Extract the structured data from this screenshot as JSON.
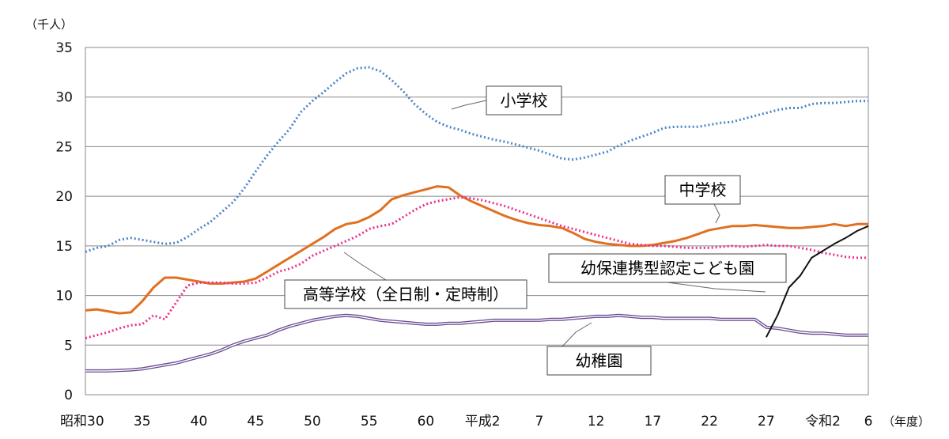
{
  "chart_data": {
    "type": "line",
    "unit_label": "（千人）",
    "x_unit_label": "（年度）",
    "ylim": [
      0,
      35
    ],
    "yticks": [
      0,
      5,
      10,
      15,
      20,
      25,
      30,
      35
    ],
    "xlim": [
      1955,
      2024
    ],
    "xticks": [
      {
        "x": 1955,
        "label": "昭和30"
      },
      {
        "x": 1960,
        "label": "35"
      },
      {
        "x": 1965,
        "label": "40"
      },
      {
        "x": 1970,
        "label": "45"
      },
      {
        "x": 1975,
        "label": "50"
      },
      {
        "x": 1980,
        "label": "55"
      },
      {
        "x": 1985,
        "label": "60"
      },
      {
        "x": 1990,
        "label": "平成2"
      },
      {
        "x": 1995,
        "label": "7"
      },
      {
        "x": 2000,
        "label": "12"
      },
      {
        "x": 2005,
        "label": "17"
      },
      {
        "x": 2010,
        "label": "22"
      },
      {
        "x": 2015,
        "label": "27"
      },
      {
        "x": 2020,
        "label": "令和2"
      },
      {
        "x": 2024,
        "label": "6"
      }
    ],
    "grid": "horizontal",
    "series": [
      {
        "name": "小学校",
        "color": "#4a86c8",
        "style": "dotted",
        "x": [
          1955,
          1956,
          1957,
          1958,
          1959,
          1960,
          1961,
          1962,
          1963,
          1964,
          1965,
          1966,
          1967,
          1968,
          1969,
          1970,
          1971,
          1972,
          1973,
          1974,
          1975,
          1976,
          1977,
          1978,
          1979,
          1980,
          1981,
          1982,
          1983,
          1984,
          1985,
          1986,
          1987,
          1988,
          1989,
          1990,
          1991,
          1992,
          1993,
          1994,
          1995,
          1996,
          1997,
          1998,
          1999,
          2000,
          2001,
          2002,
          2003,
          2004,
          2005,
          2006,
          2007,
          2008,
          2009,
          2010,
          2011,
          2012,
          2013,
          2014,
          2015,
          2016,
          2017,
          2018,
          2019,
          2020,
          2021,
          2022,
          2023,
          2024
        ],
        "values": [
          14.4,
          14.8,
          15.0,
          15.6,
          15.8,
          15.6,
          15.4,
          15.2,
          15.3,
          15.9,
          16.7,
          17.4,
          18.4,
          19.4,
          20.8,
          22.5,
          24.1,
          25.5,
          26.8,
          28.5,
          29.6,
          30.5,
          31.5,
          32.4,
          32.9,
          33.0,
          32.6,
          31.7,
          30.6,
          29.3,
          28.3,
          27.5,
          27.0,
          26.7,
          26.3,
          26.0,
          25.7,
          25.5,
          25.2,
          24.9,
          24.6,
          24.2,
          23.8,
          23.7,
          23.9,
          24.2,
          24.5,
          25.1,
          25.6,
          26.0,
          26.4,
          26.9,
          27.0,
          27.0,
          27.0,
          27.2,
          27.4,
          27.5,
          27.8,
          28.1,
          28.4,
          28.7,
          28.9,
          28.9,
          29.3,
          29.4,
          29.4,
          29.5,
          29.6,
          29.6
        ]
      },
      {
        "name": "中学校",
        "color": "#e07020",
        "style": "solid",
        "x": [
          1955,
          1956,
          1957,
          1958,
          1959,
          1960,
          1961,
          1962,
          1963,
          1964,
          1965,
          1966,
          1967,
          1968,
          1969,
          1970,
          1971,
          1972,
          1973,
          1974,
          1975,
          1976,
          1977,
          1978,
          1979,
          1980,
          1981,
          1982,
          1983,
          1984,
          1985,
          1986,
          1987,
          1988,
          1989,
          1990,
          1991,
          1992,
          1993,
          1994,
          1995,
          1996,
          1997,
          1998,
          1999,
          2000,
          2001,
          2002,
          2003,
          2004,
          2005,
          2006,
          2007,
          2008,
          2009,
          2010,
          2011,
          2012,
          2013,
          2014,
          2015,
          2016,
          2017,
          2018,
          2019,
          2020,
          2021,
          2022,
          2023,
          2024
        ],
        "values": [
          8.5,
          8.6,
          8.4,
          8.2,
          8.3,
          9.4,
          10.8,
          11.8,
          11.8,
          11.6,
          11.4,
          11.2,
          11.2,
          11.3,
          11.4,
          11.7,
          12.4,
          13.1,
          13.8,
          14.5,
          15.2,
          15.9,
          16.7,
          17.2,
          17.4,
          17.9,
          18.6,
          19.7,
          20.1,
          20.4,
          20.7,
          21.0,
          20.9,
          20.1,
          19.5,
          19.0,
          18.5,
          18.0,
          17.6,
          17.3,
          17.1,
          17.0,
          16.8,
          16.3,
          15.7,
          15.4,
          15.2,
          15.1,
          15.0,
          15.0,
          15.1,
          15.3,
          15.5,
          15.8,
          16.2,
          16.6,
          16.8,
          17.0,
          17.0,
          17.1,
          17.0,
          16.9,
          16.8,
          16.8,
          16.9,
          17.0,
          17.2,
          17.0,
          17.2,
          17.2
        ]
      },
      {
        "name": "高等学校（全日制・定時制）",
        "color": "#ee2d8d",
        "style": "dotted",
        "x": [
          1955,
          1956,
          1957,
          1958,
          1959,
          1960,
          1961,
          1962,
          1963,
          1964,
          1965,
          1966,
          1967,
          1968,
          1969,
          1970,
          1971,
          1972,
          1973,
          1974,
          1975,
          1976,
          1977,
          1978,
          1979,
          1980,
          1981,
          1982,
          1983,
          1984,
          1985,
          1986,
          1987,
          1988,
          1989,
          1990,
          1991,
          1992,
          1993,
          1994,
          1995,
          1996,
          1997,
          1998,
          1999,
          2000,
          2001,
          2002,
          2003,
          2004,
          2005,
          2006,
          2007,
          2008,
          2009,
          2010,
          2011,
          2012,
          2013,
          2014,
          2015,
          2016,
          2017,
          2018,
          2019,
          2020,
          2021,
          2022,
          2023,
          2024
        ],
        "values": [
          5.7,
          6.0,
          6.3,
          6.7,
          7.0,
          7.1,
          8.0,
          7.6,
          9.3,
          11.0,
          11.3,
          11.3,
          11.3,
          11.2,
          11.2,
          11.3,
          11.8,
          12.4,
          12.7,
          13.2,
          14.0,
          14.5,
          15.0,
          15.5,
          16.0,
          16.7,
          17.0,
          17.2,
          17.9,
          18.6,
          19.2,
          19.5,
          19.7,
          19.9,
          19.8,
          19.6,
          19.3,
          19.0,
          18.6,
          18.2,
          17.8,
          17.4,
          17.0,
          16.7,
          16.4,
          16.1,
          15.8,
          15.5,
          15.2,
          15.1,
          15.0,
          15.0,
          14.9,
          14.8,
          14.8,
          14.8,
          14.9,
          15.0,
          14.9,
          15.0,
          15.1,
          15.0,
          15.0,
          14.8,
          14.6,
          14.3,
          14.1,
          13.9,
          13.8,
          13.8
        ]
      },
      {
        "name": "幼稚園",
        "color": "#6a4c93",
        "style": "double",
        "x": [
          1955,
          1956,
          1957,
          1958,
          1959,
          1960,
          1961,
          1962,
          1963,
          1964,
          1965,
          1966,
          1967,
          1968,
          1969,
          1970,
          1971,
          1972,
          1973,
          1974,
          1975,
          1976,
          1977,
          1978,
          1979,
          1980,
          1981,
          1982,
          1983,
          1984,
          1985,
          1986,
          1987,
          1988,
          1989,
          1990,
          1991,
          1992,
          1993,
          1994,
          1995,
          1996,
          1997,
          1998,
          1999,
          2000,
          2001,
          2002,
          2003,
          2004,
          2005,
          2006,
          2007,
          2008,
          2009,
          2010,
          2011,
          2012,
          2013,
          2014,
          2015,
          2016,
          2017,
          2018,
          2019,
          2020,
          2021,
          2022,
          2023,
          2024
        ],
        "values": [
          2.4,
          2.4,
          2.4,
          2.45,
          2.5,
          2.6,
          2.8,
          3.0,
          3.2,
          3.5,
          3.8,
          4.1,
          4.5,
          5.0,
          5.4,
          5.7,
          6.0,
          6.5,
          6.9,
          7.2,
          7.5,
          7.7,
          7.9,
          8.0,
          7.9,
          7.7,
          7.5,
          7.4,
          7.3,
          7.2,
          7.1,
          7.1,
          7.2,
          7.2,
          7.3,
          7.4,
          7.5,
          7.5,
          7.5,
          7.5,
          7.5,
          7.6,
          7.6,
          7.7,
          7.8,
          7.9,
          7.9,
          8.0,
          7.9,
          7.8,
          7.8,
          7.7,
          7.7,
          7.7,
          7.7,
          7.7,
          7.6,
          7.6,
          7.6,
          7.6,
          6.8,
          6.7,
          6.5,
          6.3,
          6.2,
          6.2,
          6.1,
          6.0,
          6.0,
          6.0
        ]
      },
      {
        "name": "幼保連携型認定こども園",
        "color": "#111111",
        "style": "solid",
        "x": [
          2015,
          2016,
          2017,
          2018,
          2019,
          2020,
          2021,
          2022,
          2023,
          2024
        ],
        "values": [
          5.8,
          8.0,
          10.8,
          12.0,
          13.8,
          14.5,
          15.2,
          15.8,
          16.5,
          17.0
        ]
      }
    ]
  }
}
